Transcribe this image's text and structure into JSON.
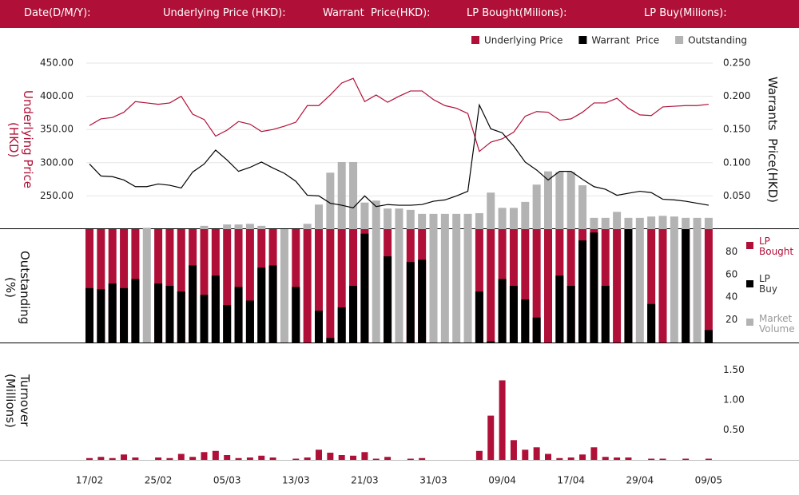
{
  "header": {
    "fields": [
      "Date(D/M/Y):",
      "Underlying Price (HKD):",
      "Warrant  Price(HKD):",
      "LP Bought(Milions):",
      "LP Buy(Milions):"
    ]
  },
  "chart_data": [
    {
      "type": "line",
      "ylabel": "Underlying Price (HKD)",
      "y2label": "Warrants  Price(HKD)",
      "ylim": [
        200,
        450
      ],
      "yticks": [
        {
          "value": 250,
          "label": "250.00"
        },
        {
          "value": 300,
          "label": "300.00"
        },
        {
          "value": 350,
          "label": "350.00"
        },
        {
          "value": 400,
          "label": "400.00"
        },
        {
          "value": 450,
          "label": "450.00"
        }
      ],
      "y2lim": [
        0,
        0.25
      ],
      "y2ticks": [
        {
          "value": 0.05,
          "label": "0.050"
        },
        {
          "value": 0.1,
          "label": "0.100"
        },
        {
          "value": 0.15,
          "label": "0.150"
        },
        {
          "value": 0.2,
          "label": "0.200"
        },
        {
          "value": 0.25,
          "label": "0.250"
        }
      ],
      "grid": true,
      "series": [
        {
          "name": "Underlying Price",
          "color": "#b01038",
          "type": "line",
          "values": [
            356,
            366,
            368,
            376,
            392,
            390,
            388,
            390,
            400,
            373,
            365,
            340,
            349,
            362,
            358,
            347,
            350,
            355,
            361,
            386,
            386,
            402,
            420,
            427,
            392,
            402,
            391,
            400,
            408,
            408,
            395,
            386,
            382,
            374,
            317,
            331,
            336,
            346,
            370,
            377,
            376,
            364,
            366,
            376,
            390,
            390,
            397,
            382,
            372,
            371,
            384,
            385,
            386,
            386,
            388
          ]
        },
        {
          "name": "Warrant  Price",
          "color": "#000000",
          "type": "line",
          "axis": "y2",
          "values": [
            0.098,
            0.08,
            0.079,
            0.074,
            0.064,
            0.064,
            0.068,
            0.066,
            0.062,
            0.086,
            0.098,
            0.119,
            0.104,
            0.087,
            0.093,
            0.101,
            0.092,
            0.084,
            0.072,
            0.051,
            0.05,
            0.039,
            0.036,
            0.032,
            0.05,
            0.034,
            0.037,
            0.036,
            0.036,
            0.037,
            0.042,
            0.044,
            0.05,
            0.057,
            0.187,
            0.151,
            0.145,
            0.125,
            0.101,
            0.089,
            0.074,
            0.087,
            0.087,
            0.075,
            0.064,
            0.06,
            0.051,
            0.054,
            0.057,
            0.055,
            0.045,
            0.044,
            0.042,
            0.039,
            0.036
          ]
        },
        {
          "name": "Outstanding",
          "color": "#b3b3b3",
          "type": "bar",
          "axis": "y2",
          "values": [
            0,
            0,
            0,
            0,
            0,
            0.002,
            0,
            0,
            0,
            0,
            0.005,
            0,
            0.007,
            0.007,
            0.008,
            0.005,
            0,
            0,
            0,
            0.008,
            0.037,
            0.085,
            0.101,
            0.101,
            0.04,
            0.043,
            0.031,
            0.031,
            0.029,
            0.023,
            0.023,
            0.023,
            0.023,
            0.023,
            0.024,
            0.055,
            0.032,
            0.032,
            0.041,
            0.067,
            0.087,
            0.086,
            0.086,
            0.066,
            0.017,
            0.017,
            0.026,
            0.017,
            0.017,
            0.019,
            0.02,
            0.019,
            0.017,
            0.017,
            0.017
          ]
        }
      ]
    },
    {
      "type": "bar",
      "ylabel": "Outstanding (%)",
      "ylim": [
        0,
        100
      ],
      "yticks": [
        20,
        40,
        60,
        80
      ],
      "series": [
        {
          "name": "LP Bought",
          "color": "#b01038",
          "values": [
            100,
            100,
            100,
            100,
            100,
            null,
            100,
            100,
            100,
            100,
            100,
            100,
            100,
            100,
            100,
            100,
            100,
            null,
            100,
            100,
            100,
            100,
            100,
            100,
            100,
            null,
            100,
            null,
            100,
            100,
            null,
            null,
            null,
            null,
            100,
            100,
            100,
            100,
            100,
            100,
            100,
            100,
            100,
            100,
            100,
            100,
            100,
            100,
            null,
            100,
            100,
            null,
            100,
            null,
            100
          ]
        },
        {
          "name": "LP Buy",
          "color": "#000000",
          "values": [
            48,
            47,
            52,
            48,
            56,
            null,
            52,
            50,
            45,
            68,
            42,
            59,
            33,
            49,
            37,
            66,
            68,
            null,
            49,
            0,
            28,
            4,
            31,
            50,
            96,
            null,
            76,
            null,
            71,
            73,
            null,
            null,
            null,
            null,
            45,
            1,
            56,
            50,
            38,
            22,
            0,
            59,
            50,
            90,
            97,
            50,
            0,
            100,
            null,
            34,
            0,
            null,
            100,
            null,
            11
          ]
        },
        {
          "name": "Market Volume",
          "color": "#b3b3b3",
          "values": [
            null,
            null,
            null,
            null,
            null,
            100,
            null,
            null,
            null,
            null,
            null,
            null,
            null,
            null,
            null,
            null,
            null,
            100,
            null,
            null,
            null,
            null,
            null,
            null,
            null,
            100,
            null,
            100,
            null,
            null,
            100,
            100,
            100,
            100,
            null,
            null,
            null,
            null,
            null,
            null,
            null,
            null,
            null,
            null,
            null,
            null,
            null,
            null,
            100,
            null,
            null,
            100,
            null,
            100,
            null
          ]
        }
      ]
    },
    {
      "type": "bar",
      "ylabel": "Turnover (Millions)",
      "color": "#b01038",
      "ylim": [
        0,
        1.95
      ],
      "yticks": [
        {
          "value": 0.5,
          "label": "0.50"
        },
        {
          "value": 1,
          "label": "1.00"
        },
        {
          "value": 1.5,
          "label": "1.50"
        }
      ],
      "categories": [
        "17/02",
        null,
        null,
        null,
        null,
        null,
        "25/02",
        null,
        null,
        null,
        null,
        null,
        "05/03",
        null,
        null,
        null,
        null,
        null,
        "13/03",
        null,
        null,
        null,
        null,
        null,
        "21/03",
        null,
        null,
        null,
        null,
        null,
        "31/03",
        null,
        null,
        null,
        null,
        null,
        "09/04",
        null,
        null,
        null,
        null,
        null,
        "17/04",
        null,
        null,
        null,
        null,
        null,
        "29/04",
        null,
        null,
        null,
        null,
        null,
        "09/05"
      ],
      "values": [
        0.03,
        0.05,
        0.03,
        0.09,
        0.04,
        0,
        0.04,
        0.03,
        0.1,
        0.05,
        0.13,
        0.15,
        0.08,
        0.03,
        0.04,
        0.07,
        0.04,
        0,
        0.02,
        0.04,
        0.17,
        0.12,
        0.08,
        0.07,
        0.13,
        0.02,
        0.05,
        0,
        0.02,
        0.03,
        0,
        0,
        0,
        0,
        0.15,
        0.74,
        1.33,
        0.33,
        0.17,
        0.21,
        0.1,
        0.03,
        0.04,
        0.09,
        0.21,
        0.05,
        0.04,
        0.04,
        0,
        0.02,
        0.02,
        0,
        0.02,
        0,
        0.02
      ]
    }
  ]
}
